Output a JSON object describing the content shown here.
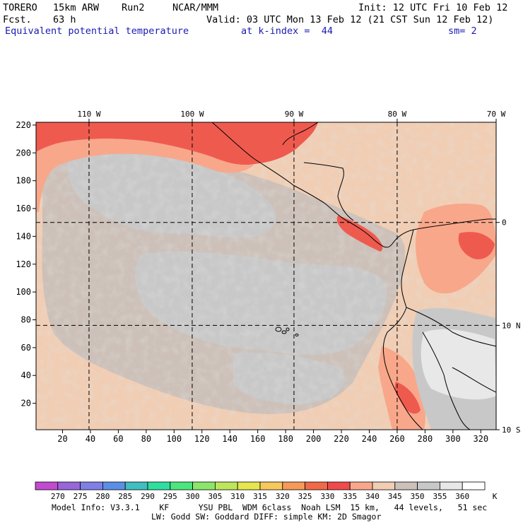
{
  "header": {
    "model": "TORERO",
    "resolution": "15km ARW",
    "run": "Run2",
    "org": "NCAR/MMM",
    "init": "Init: 12 UTC Fri 10 Feb 12",
    "fcst_label": "Fcst.",
    "fcst_hours": "63 h",
    "valid": "Valid: 03 UTC Mon 13 Feb 12 (21 CST Sun 12 Feb 12)",
    "field": "Equivalent potential temperature",
    "level": "at k-index =  44",
    "smoothing": "sm= 2"
  },
  "map": {
    "top_lon_labels": [
      "110 W",
      "100 W",
      "90 W",
      "80 W",
      "70 W"
    ],
    "right_lat_labels": [
      "10 N",
      "0",
      "10 S"
    ],
    "x_ticks": [
      "20",
      "40",
      "60",
      "80",
      "100",
      "120",
      "140",
      "160",
      "180",
      "200",
      "220",
      "240",
      "260",
      "280",
      "300",
      "320"
    ],
    "y_ticks": [
      "20",
      "40",
      "60",
      "80",
      "100",
      "120",
      "140",
      "160",
      "180",
      "200",
      "220"
    ],
    "grid_x_values": [
      39,
      113,
      186,
      260
    ],
    "grid_y_values": [
      76,
      150
    ],
    "x_range": [
      1,
      331
    ],
    "y_range": [
      1,
      222
    ]
  },
  "colorbar": {
    "levels": [
      "270",
      "275",
      "280",
      "285",
      "290",
      "295",
      "300",
      "305",
      "310",
      "315",
      "320",
      "325",
      "330",
      "335",
      "340",
      "345",
      "350",
      "355",
      "360"
    ],
    "unit": "K",
    "colors": [
      "#c34bcf",
      "#9966d9",
      "#7f7fe6",
      "#5b8fe6",
      "#3fbfbf",
      "#2fdf9f",
      "#4ce67f",
      "#8ce66a",
      "#bfe65a",
      "#e6e64f",
      "#f7c85b",
      "#f59a57",
      "#f06a48",
      "#ef4b4b",
      "#f8a78b",
      "#f0cdb3",
      "#ccc0b8",
      "#c8c8c8",
      "#e8e8e8",
      "#ffffff"
    ]
  },
  "footer": {
    "line1": "Model Info: V3.3.1    KF      YSU PBL  WDM 6class  Noah LSM  15 km,   44 levels,   51 sec",
    "line2": "LW: Godd SW: Goddard DIFF: simple KM: 2D Smagor"
  }
}
